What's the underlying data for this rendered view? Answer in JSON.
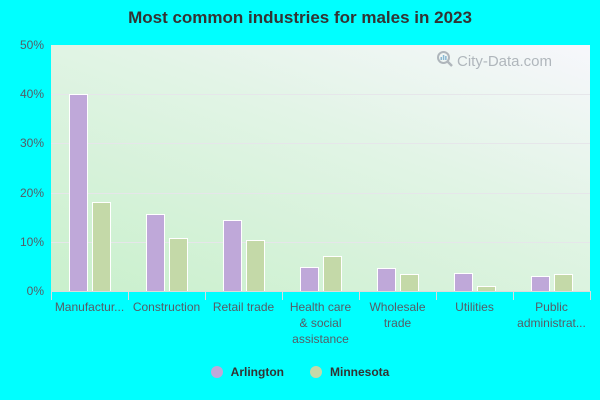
{
  "title": "Most common industries for males in 2023",
  "watermark": {
    "text": "City-Data.com",
    "icon": "magnifier-chart-icon"
  },
  "colors": {
    "arlington": "#bfa8d9",
    "minnesota": "#c4d9a8",
    "background": "#00ffff"
  },
  "legend": [
    {
      "label": "Arlington",
      "color": "#bfa8d9"
    },
    {
      "label": "Minnesota",
      "color": "#c4d9a8"
    }
  ],
  "yaxis": {
    "ticks": [
      "0%",
      "10%",
      "20%",
      "30%",
      "40%",
      "50%"
    ]
  },
  "xlabels": [
    [
      "Manufactur..."
    ],
    [
      "Construction"
    ],
    [
      "Retail trade"
    ],
    [
      "Health care",
      "& social",
      "assistance"
    ],
    [
      "Wholesale",
      "trade"
    ],
    [
      "Utilities"
    ],
    [
      "Public",
      "administrat..."
    ]
  ],
  "chart_data": {
    "type": "bar",
    "title": "Most common industries for males in 2023",
    "xlabel": "",
    "ylabel": "",
    "ylim": [
      0,
      50
    ],
    "yticks": [
      0,
      10,
      20,
      30,
      40,
      50
    ],
    "ytick_format": "percent",
    "grid": true,
    "legend_position": "bottom",
    "categories": [
      "Manufacturing",
      "Construction",
      "Retail trade",
      "Health care & social assistance",
      "Wholesale trade",
      "Utilities",
      "Public administration"
    ],
    "category_labels_displayed": [
      "Manufactur...",
      "Construction",
      "Retail trade",
      "Health care & social assistance",
      "Wholesale trade",
      "Utilities",
      "Public administrat..."
    ],
    "series": [
      {
        "name": "Arlington",
        "color": "#bfa8d9",
        "values": [
          40.1,
          15.6,
          14.5,
          4.9,
          4.7,
          3.7,
          3.1
        ]
      },
      {
        "name": "Minnesota",
        "color": "#c4d9a8",
        "values": [
          18.1,
          10.8,
          10.4,
          7.1,
          3.5,
          1.0,
          3.5
        ]
      }
    ]
  }
}
